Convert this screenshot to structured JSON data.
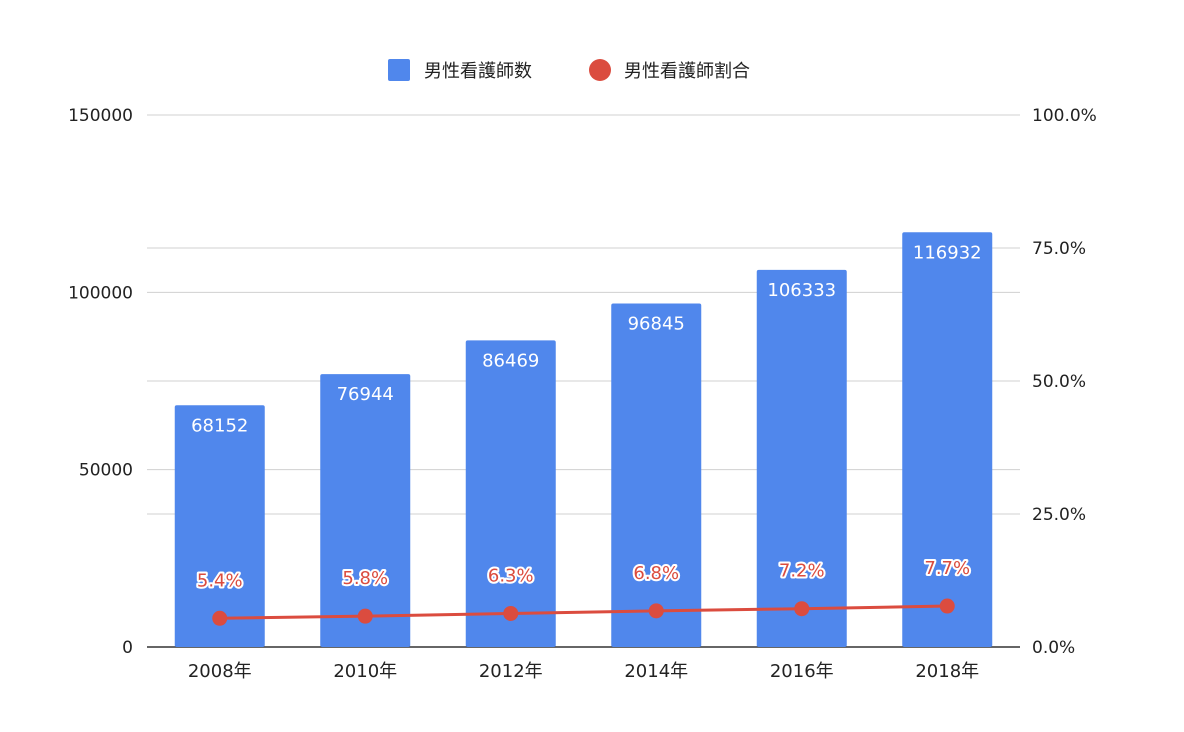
{
  "chart_data": {
    "type": "bar",
    "categories": [
      "2008年",
      "2010年",
      "2012年",
      "2014年",
      "2016年",
      "2018年"
    ],
    "series": [
      {
        "name": "男性看護師数",
        "type": "bar",
        "axis": "left",
        "color": "#5087EC",
        "values": [
          68152,
          76944,
          86469,
          96845,
          106333,
          116932
        ],
        "labels": [
          "68152",
          "76944",
          "86469",
          "96845",
          "106333",
          "116932"
        ]
      },
      {
        "name": "男性看護師割合",
        "type": "line",
        "axis": "right",
        "color": "#DB4C3F",
        "values": [
          5.4,
          5.8,
          6.3,
          6.8,
          7.2,
          7.7
        ],
        "labels": [
          "5.4%",
          "5.8%",
          "6.3%",
          "6.8%",
          "7.2%",
          "7.7%"
        ]
      }
    ],
    "left_axis": {
      "min": 0,
      "max": 150000,
      "ticks": [
        0,
        50000,
        100000,
        150000
      ],
      "tick_labels": [
        "0",
        "50000",
        "100000",
        "150000"
      ]
    },
    "right_axis": {
      "min": 0,
      "max": 100,
      "ticks": [
        0,
        25,
        50,
        75,
        100
      ],
      "tick_labels": [
        "0.0%",
        "25.0%",
        "50.0%",
        "75.0%",
        "100.0%"
      ]
    },
    "legend_position": "top",
    "grid": true
  }
}
